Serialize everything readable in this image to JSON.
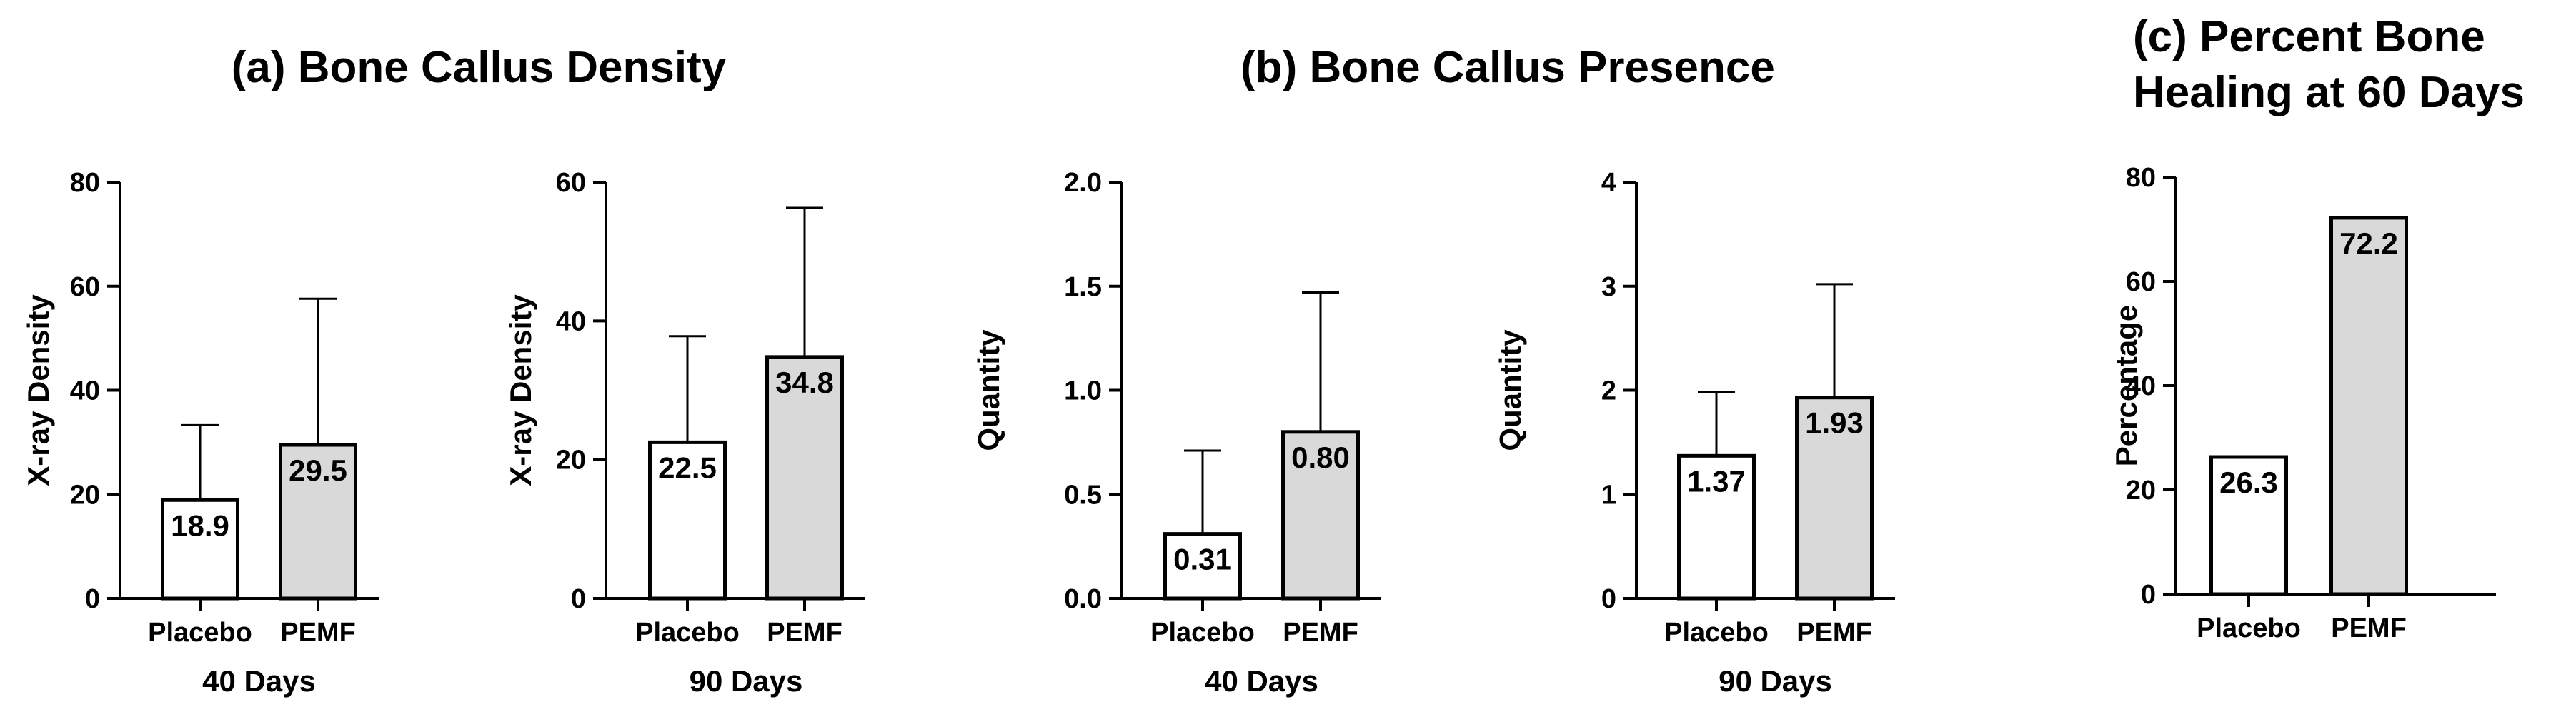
{
  "panel_titles": {
    "a": "(a) Bone Callus Density",
    "b": "(b) Bone Callus Presence",
    "c_line1": "(c) Percent Bone",
    "c_line2": "Healing at 60 Days"
  },
  "colors": {
    "placebo_fill": "#ffffff",
    "pemf_fill": "#d9d9d9",
    "stroke": "#000000"
  },
  "chart_data": [
    {
      "type": "bar",
      "panel": "a",
      "categories": [
        "Placebo",
        "PEMF"
      ],
      "values": [
        18.9,
        29.5
      ],
      "error_upper": [
        33.3,
        57.6
      ],
      "data_labels": [
        "18.9",
        "29.5"
      ],
      "ylabel": "X-ray Density",
      "xlabel": "40 Days",
      "ylim": [
        0,
        80
      ],
      "yticks": [
        0,
        20,
        40,
        60,
        80
      ],
      "ytick_labels": [
        "0",
        "20",
        "40",
        "60",
        "80"
      ],
      "grid": false
    },
    {
      "type": "bar",
      "panel": "a",
      "categories": [
        "Placebo",
        "PEMF"
      ],
      "values": [
        22.5,
        34.8
      ],
      "error_upper": [
        37.8,
        56.3
      ],
      "data_labels": [
        "22.5",
        "34.8"
      ],
      "ylabel": "X-ray Density",
      "xlabel": "90 Days",
      "ylim": [
        0,
        60
      ],
      "yticks": [
        0,
        20,
        40,
        60
      ],
      "ytick_labels": [
        "0",
        "20",
        "40",
        "60"
      ],
      "grid": false
    },
    {
      "type": "bar",
      "panel": "b",
      "categories": [
        "Placebo",
        "PEMF"
      ],
      "values": [
        0.31,
        0.8
      ],
      "error_upper": [
        0.71,
        1.47
      ],
      "data_labels": [
        "0.31",
        "0.80"
      ],
      "ylabel": "Quantity",
      "xlabel": "40 Days",
      "ylim": [
        0,
        2.0
      ],
      "yticks": [
        0,
        0.5,
        1.0,
        1.5,
        2.0
      ],
      "ytick_labels": [
        "0.0",
        "0.5",
        "1.0",
        "1.5",
        "2.0"
      ],
      "grid": false
    },
    {
      "type": "bar",
      "panel": "b",
      "categories": [
        "Placebo",
        "PEMF"
      ],
      "values": [
        1.37,
        1.93
      ],
      "error_upper": [
        1.98,
        3.02
      ],
      "data_labels": [
        "1.37",
        "1.93"
      ],
      "ylabel": "Quantity",
      "xlabel": "90 Days",
      "ylim": [
        0,
        4
      ],
      "yticks": [
        0,
        1,
        2,
        3,
        4
      ],
      "ytick_labels": [
        "0",
        "1",
        "2",
        "3",
        "4"
      ],
      "grid": false
    },
    {
      "type": "bar",
      "panel": "c",
      "categories": [
        "Placebo",
        "PEMF"
      ],
      "values": [
        26.3,
        72.2
      ],
      "error_upper": [
        null,
        null
      ],
      "data_labels": [
        "26.3",
        "72.2"
      ],
      "ylabel": "Percentage",
      "xlabel": "",
      "ylim": [
        0,
        80
      ],
      "yticks": [
        0,
        20,
        40,
        60,
        80
      ],
      "ytick_labels": [
        "0",
        "20",
        "40",
        "60",
        "80"
      ],
      "grid": false
    }
  ]
}
